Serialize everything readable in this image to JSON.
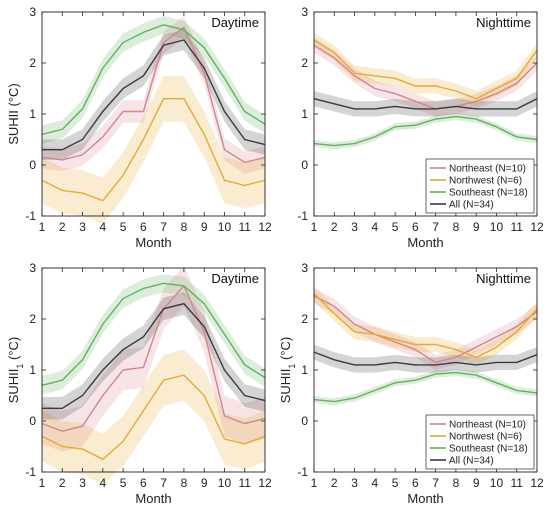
{
  "colors": {
    "northeast": "#d4848f",
    "northwest": "#e8a92f",
    "southeast": "#5fb35b",
    "all": "#3a3a3a"
  },
  "chart_data": [
    {
      "type": "line",
      "title": "Daytime",
      "xlabel": "Month",
      "ylabel": "SUHII (°C)",
      "xlim": [
        1,
        12
      ],
      "ylim": [
        -1,
        3
      ],
      "grid": false,
      "x": [
        1,
        2,
        3,
        4,
        5,
        6,
        7,
        8,
        9,
        10,
        11,
        12
      ],
      "series": [
        {
          "name": "Northeast (N=10)",
          "key": "northeast",
          "values": [
            0.15,
            0.1,
            0.2,
            0.55,
            1.05,
            1.05,
            2.4,
            2.7,
            1.8,
            0.3,
            0.05,
            0.15
          ],
          "band": 0.22
        },
        {
          "name": "Northwest (N=6)",
          "key": "northwest",
          "values": [
            -0.3,
            -0.5,
            -0.55,
            -0.7,
            -0.2,
            0.5,
            1.3,
            1.3,
            0.6,
            -0.3,
            -0.4,
            -0.3
          ],
          "band": 0.45
        },
        {
          "name": "Southeast (N=18)",
          "key": "southeast",
          "values": [
            0.6,
            0.7,
            1.1,
            1.9,
            2.4,
            2.6,
            2.75,
            2.65,
            2.3,
            1.7,
            1.05,
            0.8
          ],
          "band": 0.18
        },
        {
          "name": "All (N=34)",
          "key": "all",
          "values": [
            0.3,
            0.3,
            0.5,
            1.05,
            1.5,
            1.75,
            2.35,
            2.45,
            1.9,
            1.05,
            0.5,
            0.4
          ],
          "band": 0.2
        }
      ]
    },
    {
      "type": "line",
      "title": "Nighttime",
      "xlabel": "Month",
      "ylabel": "",
      "xlim": [
        1,
        12
      ],
      "ylim": [
        -1,
        3
      ],
      "grid": false,
      "legend": "bottom-right",
      "x": [
        1,
        2,
        3,
        4,
        5,
        6,
        7,
        8,
        9,
        10,
        11,
        12
      ],
      "series": [
        {
          "name": "Northeast (N=10)",
          "key": "northeast",
          "values": [
            2.35,
            2.1,
            1.75,
            1.5,
            1.4,
            1.25,
            1.1,
            1.15,
            1.25,
            1.4,
            1.6,
            2.0
          ],
          "band": 0.15
        },
        {
          "name": "Northwest (N=6)",
          "key": "northwest",
          "values": [
            2.45,
            2.2,
            1.8,
            1.75,
            1.7,
            1.55,
            1.55,
            1.45,
            1.3,
            1.5,
            1.7,
            2.25
          ],
          "band": 0.15
        },
        {
          "name": "Southeast (N=18)",
          "key": "southeast",
          "values": [
            0.42,
            0.38,
            0.42,
            0.55,
            0.75,
            0.78,
            0.9,
            0.95,
            0.9,
            0.75,
            0.55,
            0.5
          ],
          "band": 0.07
        },
        {
          "name": "All (N=34)",
          "key": "all",
          "values": [
            1.3,
            1.2,
            1.1,
            1.1,
            1.15,
            1.1,
            1.1,
            1.15,
            1.1,
            1.1,
            1.1,
            1.3
          ],
          "band": 0.15
        }
      ]
    },
    {
      "type": "line",
      "title": "Daytime",
      "xlabel": "Month",
      "ylabel": "SUHII",
      "ylabel_sub": "1",
      "ylabel_unit": " (°C)",
      "xlim": [
        1,
        12
      ],
      "ylim": [
        -1,
        3
      ],
      "grid": false,
      "x": [
        1,
        2,
        3,
        4,
        5,
        6,
        7,
        8,
        9,
        10,
        11,
        12
      ],
      "series": [
        {
          "name": "Northeast (N=10)",
          "key": "northeast",
          "values": [
            -0.05,
            -0.2,
            -0.1,
            0.5,
            1.0,
            1.05,
            2.2,
            2.65,
            1.75,
            0.1,
            -0.05,
            0.05
          ],
          "band": 0.4
        },
        {
          "name": "Northwest (N=6)",
          "key": "northwest",
          "values": [
            -0.3,
            -0.5,
            -0.55,
            -0.75,
            -0.4,
            0.2,
            0.8,
            0.9,
            0.5,
            -0.35,
            -0.45,
            -0.3
          ],
          "band": 0.5
        },
        {
          "name": "Southeast (N=18)",
          "key": "southeast",
          "values": [
            0.7,
            0.8,
            1.2,
            1.9,
            2.4,
            2.6,
            2.7,
            2.65,
            2.3,
            1.7,
            1.1,
            0.85
          ],
          "band": 0.18
        },
        {
          "name": "All (N=34)",
          "key": "all",
          "values": [
            0.25,
            0.25,
            0.5,
            1.0,
            1.4,
            1.65,
            2.2,
            2.3,
            1.85,
            1.0,
            0.5,
            0.4
          ],
          "band": 0.22
        }
      ]
    },
    {
      "type": "line",
      "title": "Nighttime",
      "xlabel": "Month",
      "ylabel": "SUHII",
      "ylabel_sub": "1",
      "ylabel_unit": " (°C)",
      "xlim": [
        1,
        12
      ],
      "ylim": [
        -1,
        3
      ],
      "grid": false,
      "legend": "bottom-right",
      "x": [
        1,
        2,
        3,
        4,
        5,
        6,
        7,
        8,
        9,
        10,
        11,
        12
      ],
      "series": [
        {
          "name": "Northeast (N=10)",
          "key": "northeast",
          "values": [
            2.45,
            2.25,
            1.9,
            1.7,
            1.55,
            1.4,
            1.15,
            1.25,
            1.45,
            1.65,
            1.85,
            2.15
          ],
          "band": 0.15
        },
        {
          "name": "Northwest (N=6)",
          "key": "northwest",
          "values": [
            2.5,
            2.1,
            1.75,
            1.7,
            1.6,
            1.5,
            1.5,
            1.4,
            1.25,
            1.45,
            1.75,
            2.2
          ],
          "band": 0.15
        },
        {
          "name": "Southeast (N=18)",
          "key": "southeast",
          "values": [
            0.42,
            0.38,
            0.45,
            0.6,
            0.75,
            0.8,
            0.92,
            0.95,
            0.9,
            0.75,
            0.6,
            0.55
          ],
          "band": 0.07
        },
        {
          "name": "All (N=34)",
          "key": "all",
          "values": [
            1.35,
            1.2,
            1.1,
            1.1,
            1.15,
            1.1,
            1.1,
            1.15,
            1.1,
            1.15,
            1.15,
            1.3
          ],
          "band": 0.15
        }
      ]
    }
  ]
}
